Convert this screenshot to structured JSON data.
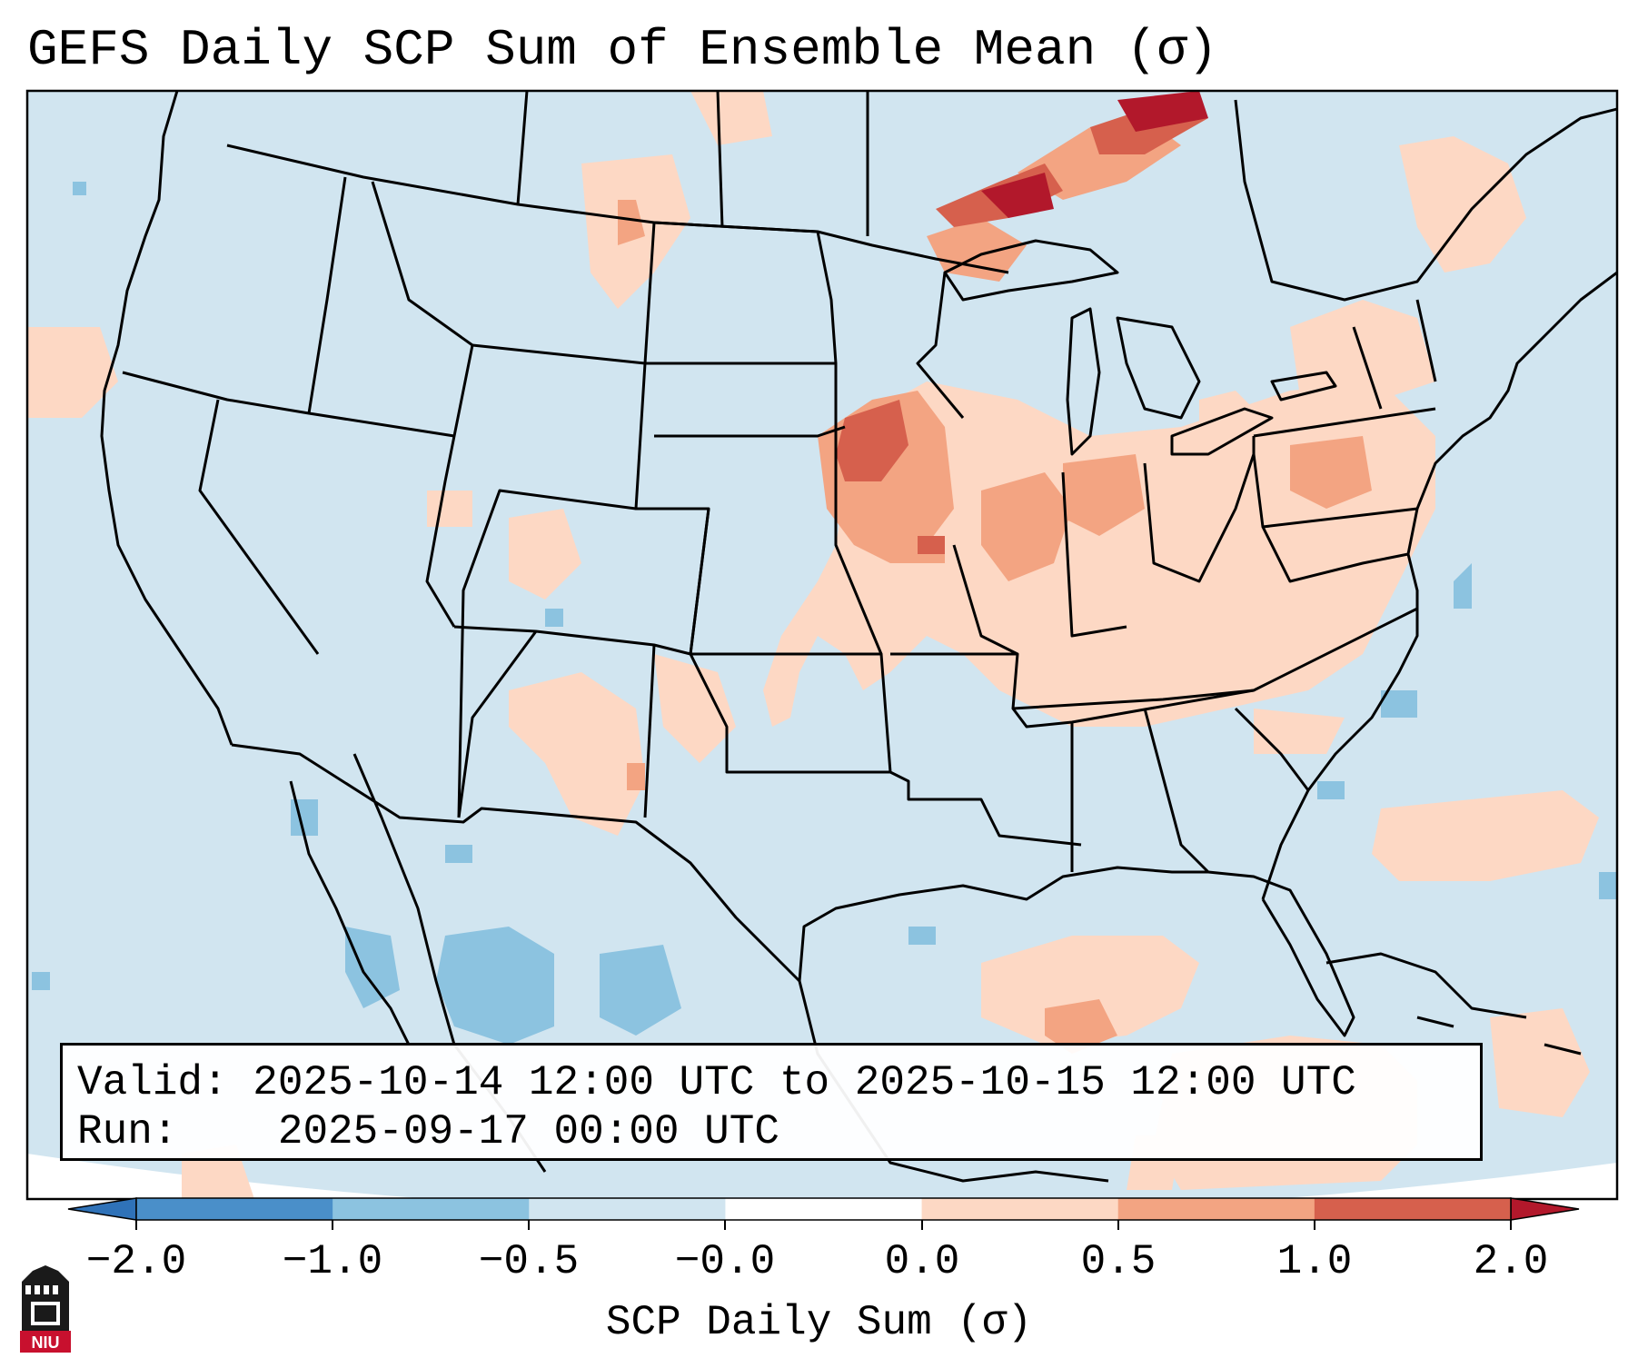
{
  "title": "GEFS Daily SCP Sum of Ensemble Mean (σ)",
  "info": {
    "valid_label": "Valid:",
    "valid_value": "2025-10-14 12:00 UTC to 2025-10-15 12:00 UTC",
    "run_label": "Run:",
    "run_value": "2025-09-17 00:00 UTC"
  },
  "colorbar": {
    "label": "SCP Daily Sum (σ)",
    "ticks": [
      "−2.0",
      "−1.0",
      "−0.5",
      "−0.0",
      "0.0",
      "0.5",
      "1.0",
      "2.0"
    ],
    "bin_colors": [
      "#4a8fc9",
      "#8cc3e0",
      "#d1e5f0",
      "#ffffff",
      "#fdd8c4",
      "#f3a482",
      "#d6604d"
    ],
    "under_color": "#2f72b8",
    "over_color": "#b2182b"
  },
  "map": {
    "background_color": "#d1e5f0",
    "outline_color": "#000000"
  },
  "logo": {
    "text": "NIU",
    "icon": "niu-castle-logo-icon"
  }
}
